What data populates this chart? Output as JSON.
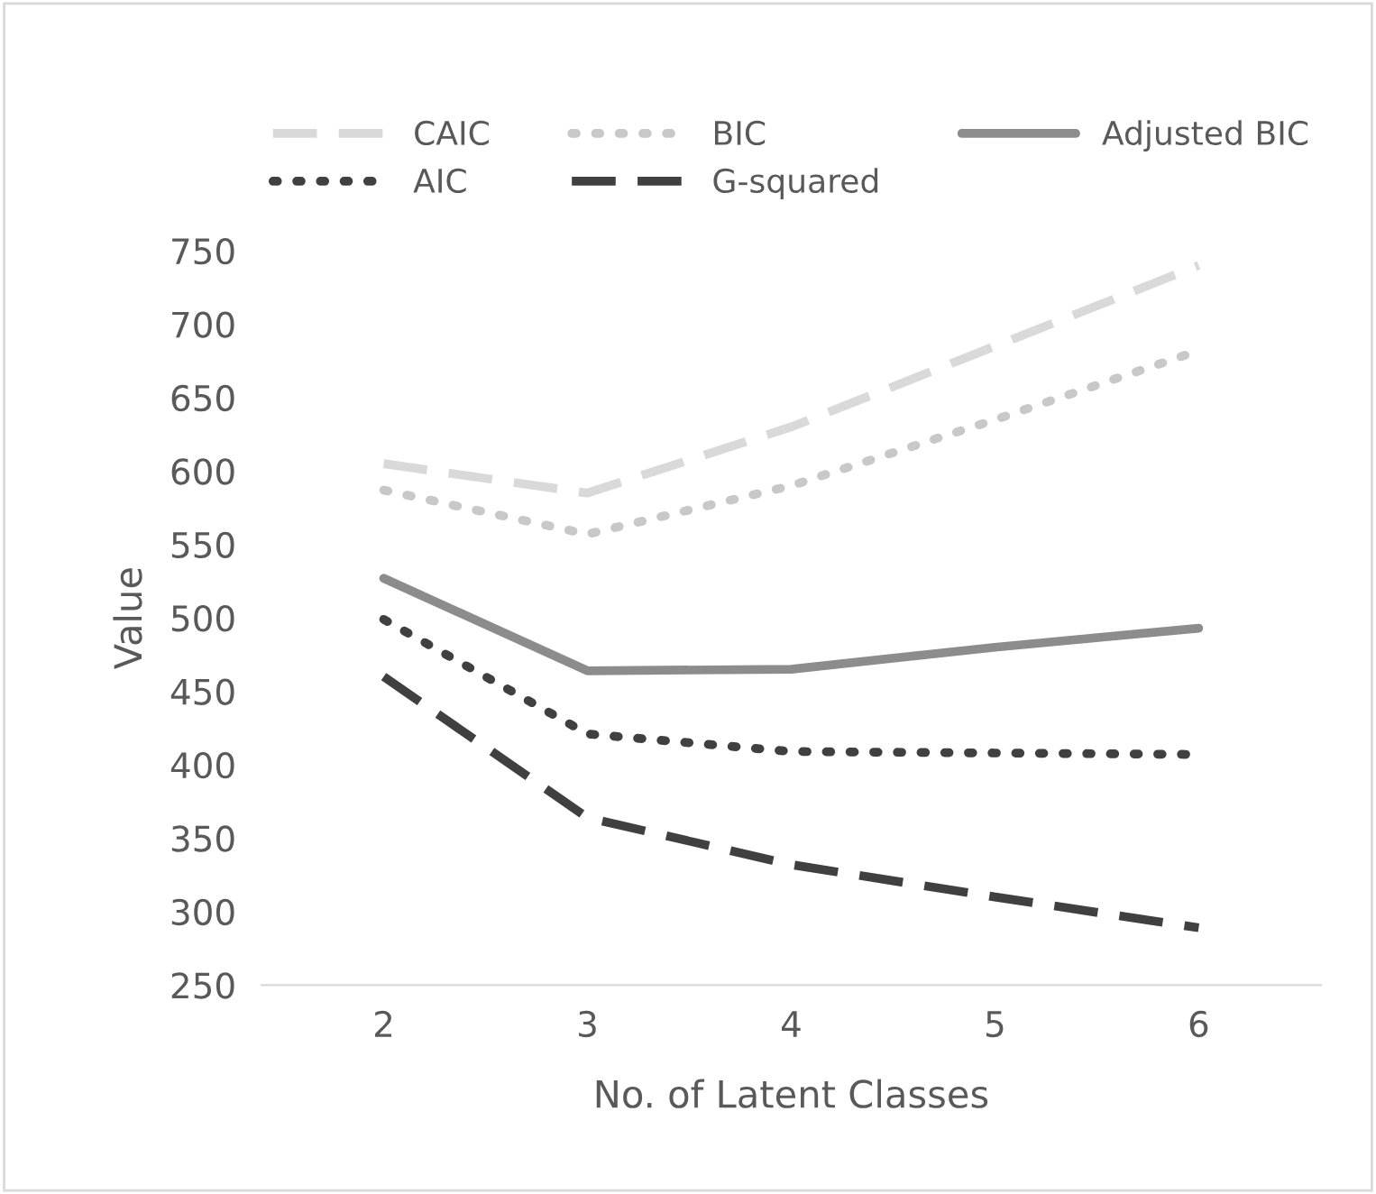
{
  "chart_data": {
    "type": "line",
    "xlabel": "No. of Latent Classes",
    "ylabel": "Value",
    "categories": [
      "2",
      "3",
      "4",
      "5",
      "6"
    ],
    "series": [
      {
        "name": "CAIC",
        "color": "#d9d9d9",
        "line_style": "dashed",
        "values": [
          605,
          585,
          630,
          685,
          740
        ]
      },
      {
        "name": "BIC",
        "color": "#c8c8c8",
        "line_style": "dotted",
        "values": [
          587,
          557,
          590,
          635,
          682
        ]
      },
      {
        "name": "Adjusted BIC",
        "color": "#8c8c8c",
        "line_style": "solid",
        "values": [
          527,
          464,
          465,
          480,
          493
        ]
      },
      {
        "name": "AIC",
        "color": "#404040",
        "line_style": "dotted",
        "values": [
          499,
          421,
          409,
          408,
          407
        ]
      },
      {
        "name": "G-squared",
        "color": "#404040",
        "line_style": "dashed",
        "values": [
          460,
          364,
          332,
          310,
          289
        ]
      }
    ],
    "ylim": [
      250,
      750
    ],
    "yticks": [
      250,
      300,
      350,
      400,
      450,
      500,
      550,
      600,
      650,
      700,
      750
    ],
    "grid": false,
    "legend": "top",
    "marker": "none"
  }
}
